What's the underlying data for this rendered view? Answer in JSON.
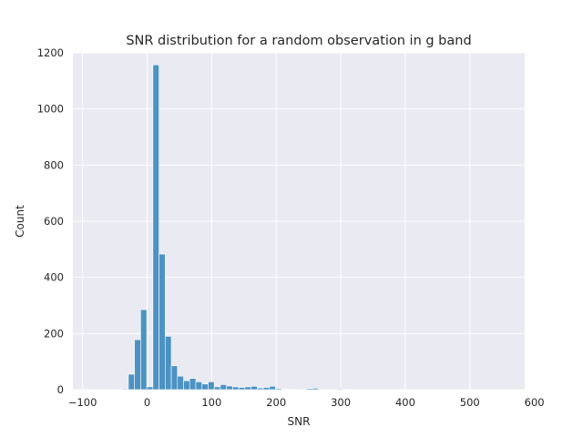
{
  "colors": {
    "plot_background": "#eaeaf2",
    "grid": "#ffffff",
    "bar_fill": "#4c92c3",
    "bar_edge": "#ffffff",
    "text": "#262626"
  },
  "chart_data": {
    "type": "bar",
    "title": "SNR distribution for a random observation in g band",
    "xlabel": "SNR",
    "ylabel": "Count",
    "xlim": [
      -115,
      585
    ],
    "ylim": [
      0,
      1200
    ],
    "xticks": [
      -100,
      0,
      100,
      200,
      300,
      400,
      500,
      600
    ],
    "yticks": [
      0,
      200,
      400,
      600,
      800,
      1000,
      1200
    ],
    "xtick_labels": [
      "−100",
      "0",
      "100",
      "200",
      "300",
      "400",
      "500",
      "600"
    ],
    "ytick_labels": [
      "0",
      "200",
      "400",
      "600",
      "800",
      "1000",
      "1200"
    ],
    "grid": true,
    "bin_width": 9.5,
    "bins": [
      {
        "x0": -38.5,
        "count": 3
      },
      {
        "x0": -29,
        "count": 55
      },
      {
        "x0": -19.5,
        "count": 178
      },
      {
        "x0": -10,
        "count": 285
      },
      {
        "x0": -0.5,
        "count": 10
      },
      {
        "x0": 9,
        "count": 1157
      },
      {
        "x0": 18.5,
        "count": 483
      },
      {
        "x0": 28,
        "count": 190
      },
      {
        "x0": 37.5,
        "count": 85
      },
      {
        "x0": 47,
        "count": 48
      },
      {
        "x0": 56.5,
        "count": 32
      },
      {
        "x0": 66,
        "count": 40
      },
      {
        "x0": 75.5,
        "count": 28
      },
      {
        "x0": 85,
        "count": 20
      },
      {
        "x0": 94.5,
        "count": 28
      },
      {
        "x0": 104,
        "count": 10
      },
      {
        "x0": 113.5,
        "count": 18
      },
      {
        "x0": 123,
        "count": 13
      },
      {
        "x0": 132.5,
        "count": 10
      },
      {
        "x0": 142,
        "count": 8
      },
      {
        "x0": 151.5,
        "count": 10
      },
      {
        "x0": 161,
        "count": 12
      },
      {
        "x0": 170.5,
        "count": 6
      },
      {
        "x0": 180,
        "count": 8
      },
      {
        "x0": 189.5,
        "count": 12
      },
      {
        "x0": 199,
        "count": 4
      },
      {
        "x0": 208.5,
        "count": 2
      },
      {
        "x0": 218,
        "count": 1
      },
      {
        "x0": 246.5,
        "count": 4
      },
      {
        "x0": 256,
        "count": 5
      },
      {
        "x0": 294,
        "count": 3
      },
      {
        "x0": 303.5,
        "count": 1
      }
    ]
  }
}
